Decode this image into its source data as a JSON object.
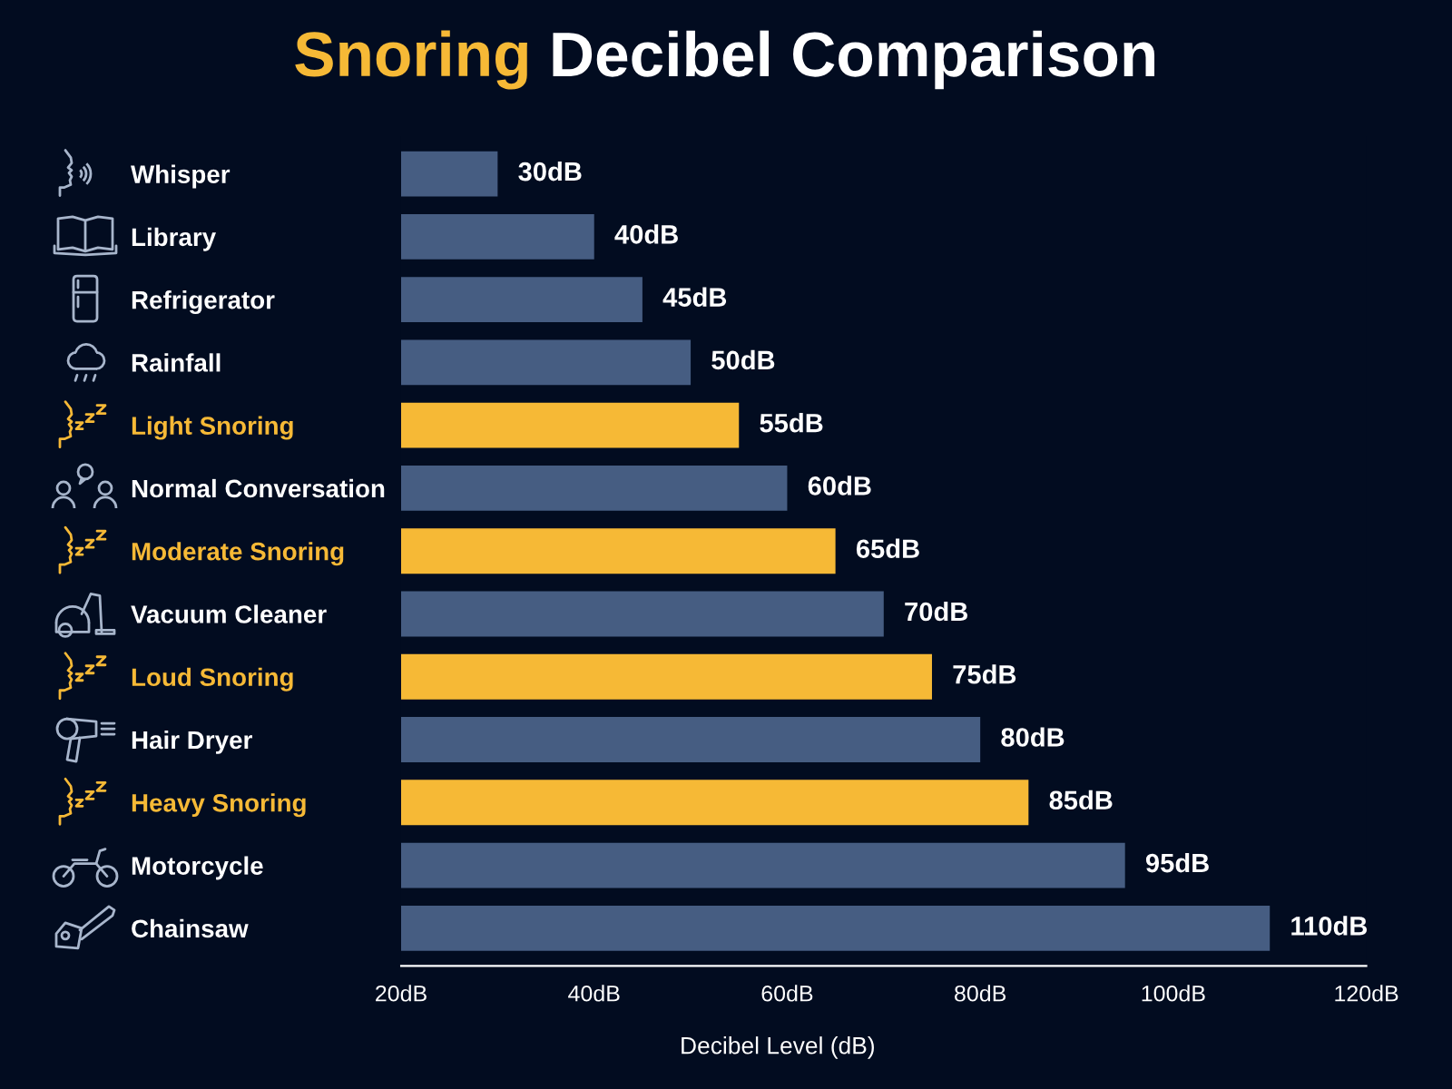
{
  "chart_data": {
    "type": "bar",
    "orientation": "horizontal",
    "title": "Snoring Decibel Comparison",
    "xlabel": "Decibel Level (dB)",
    "categories": [
      "Whisper",
      "Library",
      "Refrigerator",
      "Rainfall",
      "Light Snoring",
      "Normal Conversation",
      "Moderate Snoring",
      "Vacuum Cleaner",
      "Loud Snoring",
      "Hair Dryer",
      "Heavy Snoring",
      "Motorcycle",
      "Chainsaw"
    ],
    "values": [
      30,
      40,
      45,
      50,
      55,
      60,
      65,
      70,
      75,
      80,
      85,
      95,
      110
    ],
    "value_labels": [
      "30dB",
      "40dB",
      "45dB",
      "50dB",
      "55dB",
      "60dB",
      "65dB",
      "70dB",
      "75dB",
      "80dB",
      "85dB",
      "95dB",
      "110dB"
    ],
    "colors": [
      "#465d82",
      "#465d82",
      "#465d82",
      "#465d82",
      "#f6b936",
      "#465d82",
      "#f6b936",
      "#465d82",
      "#f6b936",
      "#465d82",
      "#f6b936",
      "#465d82",
      "#465d82"
    ],
    "xlim": [
      20,
      120
    ],
    "xticks": [
      {
        "value": 20,
        "label": "20dB"
      },
      {
        "value": 40,
        "label": "40dB"
      },
      {
        "value": 60,
        "label": "60dB"
      },
      {
        "value": 80,
        "label": "80dB"
      },
      {
        "value": 100,
        "label": "100dB"
      },
      {
        "value": 120,
        "label": "120dB"
      }
    ],
    "grid": false
  }
}
